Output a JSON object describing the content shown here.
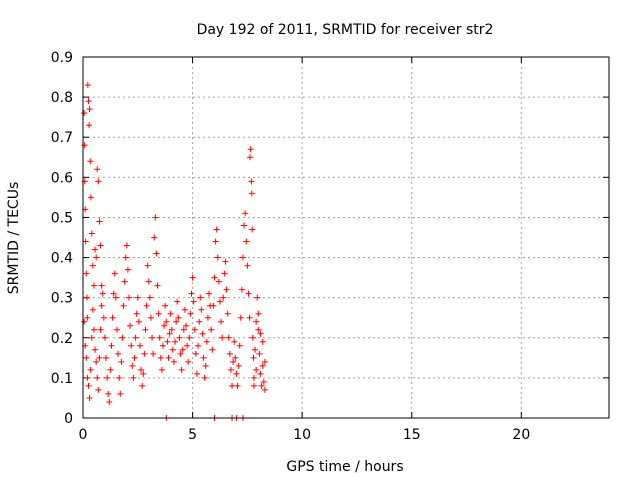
{
  "chart_data": {
    "type": "scatter",
    "title": "Day 192 of 2011, SRMTID for receiver str2",
    "xlabel": "GPS time / hours",
    "ylabel": "SRMTID / TECUs",
    "xlim": [
      0,
      24
    ],
    "ylim": [
      0,
      0.9
    ],
    "xticks": [
      0,
      5,
      10,
      15,
      20
    ],
    "yticks": [
      0,
      0.1,
      0.2,
      0.3,
      0.4,
      0.5,
      0.6,
      0.7,
      0.8,
      0.9
    ],
    "grid": true,
    "marker": "+",
    "color": "#ff0000",
    "series": [
      {
        "values": [
          [
            0.05,
            0.76
          ],
          [
            0.07,
            0.68
          ],
          [
            0.08,
            0.59
          ],
          [
            0.1,
            0.52
          ],
          [
            0.12,
            0.44
          ],
          [
            0.15,
            0.36
          ],
          [
            0.18,
            0.3
          ],
          [
            0.2,
            0.25
          ],
          [
            0.22,
            0.83
          ],
          [
            0.25,
            0.79
          ],
          [
            0.28,
            0.73
          ],
          [
            0.3,
            0.77
          ],
          [
            0.33,
            0.64
          ],
          [
            0.36,
            0.55
          ],
          [
            0.4,
            0.46
          ],
          [
            0.45,
            0.38
          ],
          [
            0.5,
            0.33
          ],
          [
            0.55,
            0.42
          ],
          [
            0.6,
            0.4
          ],
          [
            0.65,
            0.62
          ],
          [
            0.7,
            0.59
          ],
          [
            0.75,
            0.49
          ],
          [
            0.8,
            0.43
          ],
          [
            0.85,
            0.33
          ],
          [
            0.05,
            0.24
          ],
          [
            0.1,
            0.18
          ],
          [
            0.15,
            0.15
          ],
          [
            0.2,
            0.1
          ],
          [
            0.25,
            0.08
          ],
          [
            0.3,
            0.05
          ],
          [
            0.35,
            0.12
          ],
          [
            0.4,
            0.2
          ],
          [
            0.45,
            0.27
          ],
          [
            0.5,
            0.22
          ],
          [
            0.55,
            0.17
          ],
          [
            0.6,
            0.14
          ],
          [
            0.65,
            0.1
          ],
          [
            0.7,
            0.07
          ],
          [
            0.75,
            0.15
          ],
          [
            0.8,
            0.22
          ],
          [
            0.85,
            0.28
          ],
          [
            0.9,
            0.31
          ],
          [
            0.95,
            0.25
          ],
          [
            1.0,
            0.2
          ],
          [
            1.05,
            0.15
          ],
          [
            1.1,
            0.1
          ],
          [
            1.15,
            0.06
          ],
          [
            1.2,
            0.04
          ],
          [
            1.25,
            0.12
          ],
          [
            1.3,
            0.18
          ],
          [
            1.35,
            0.25
          ],
          [
            1.4,
            0.31
          ],
          [
            1.45,
            0.36
          ],
          [
            1.5,
            0.3
          ],
          [
            1.55,
            0.22
          ],
          [
            1.6,
            0.16
          ],
          [
            1.65,
            0.1
          ],
          [
            1.7,
            0.06
          ],
          [
            1.75,
            0.14
          ],
          [
            1.8,
            0.2
          ],
          [
            1.85,
            0.28
          ],
          [
            1.9,
            0.34
          ],
          [
            1.95,
            0.4
          ],
          [
            2.0,
            0.43
          ],
          [
            2.05,
            0.37
          ],
          [
            2.1,
            0.3
          ],
          [
            2.15,
            0.23
          ],
          [
            2.2,
            0.18
          ],
          [
            2.25,
            0.13
          ],
          [
            2.3,
            0.1
          ],
          [
            2.35,
            0.15
          ],
          [
            2.4,
            0.2
          ],
          [
            2.45,
            0.26
          ],
          [
            2.5,
            0.3
          ],
          [
            2.55,
            0.24
          ],
          [
            2.6,
            0.18
          ],
          [
            2.65,
            0.12
          ],
          [
            2.7,
            0.08
          ],
          [
            2.75,
            0.11
          ],
          [
            2.8,
            0.16
          ],
          [
            2.85,
            0.22
          ],
          [
            2.9,
            0.28
          ],
          [
            2.95,
            0.38
          ],
          [
            3.0,
            0.34
          ],
          [
            3.05,
            0.3
          ],
          [
            3.1,
            0.25
          ],
          [
            3.15,
            0.2
          ],
          [
            3.2,
            0.16
          ],
          [
            3.25,
            0.45
          ],
          [
            3.3,
            0.5
          ],
          [
            3.35,
            0.41
          ],
          [
            3.4,
            0.33
          ],
          [
            3.45,
            0.26
          ],
          [
            3.5,
            0.2
          ],
          [
            3.55,
            0.15
          ],
          [
            3.6,
            0.12
          ],
          [
            3.65,
            0.18
          ],
          [
            3.7,
            0.23
          ],
          [
            3.75,
            0.28
          ],
          [
            3.8,
            0.24
          ],
          [
            3.85,
            0.19
          ],
          [
            3.9,
            0.15
          ],
          [
            3.95,
            0.21
          ],
          [
            4.0,
            0.26
          ],
          [
            4.05,
            0.22
          ],
          [
            4.1,
            0.17
          ],
          [
            4.15,
            0.14
          ],
          [
            4.2,
            0.19
          ],
          [
            4.25,
            0.24
          ],
          [
            4.3,
            0.29
          ],
          [
            4.35,
            0.25
          ],
          [
            4.4,
            0.2
          ],
          [
            4.45,
            0.16
          ],
          [
            4.5,
            0.12
          ],
          [
            4.55,
            0.17
          ],
          [
            4.6,
            0.22
          ],
          [
            4.65,
            0.27
          ],
          [
            4.7,
            0.23
          ],
          [
            4.75,
            0.18
          ],
          [
            4.8,
            0.14
          ],
          [
            4.85,
            0.2
          ],
          [
            4.9,
            0.26
          ],
          [
            4.95,
            0.31
          ],
          [
            5.0,
            0.35
          ],
          [
            5.05,
            0.29
          ],
          [
            5.1,
            0.22
          ],
          [
            5.15,
            0.16
          ],
          [
            5.2,
            0.11
          ],
          [
            5.25,
            0.18
          ],
          [
            5.3,
            0.24
          ],
          [
            5.35,
            0.3
          ],
          [
            5.4,
            0.27
          ],
          [
            5.45,
            0.21
          ],
          [
            5.5,
            0.15
          ],
          [
            5.55,
            0.1
          ],
          [
            5.6,
            0.13
          ],
          [
            5.65,
            0.19
          ],
          [
            5.7,
            0.25
          ],
          [
            5.75,
            0.31
          ],
          [
            5.8,
            0.28
          ],
          [
            5.85,
            0.22
          ],
          [
            5.9,
            0.17
          ],
          [
            5.95,
            0.28
          ],
          [
            6.0,
            0.35
          ],
          [
            6.05,
            0.44
          ],
          [
            6.1,
            0.47
          ],
          [
            6.15,
            0.4
          ],
          [
            6.2,
            0.34
          ],
          [
            6.25,
            0.29
          ],
          [
            6.3,
            0.24
          ],
          [
            6.35,
            0.2
          ],
          [
            6.4,
            0.3
          ],
          [
            6.45,
            0.36
          ],
          [
            6.5,
            0.39
          ],
          [
            6.55,
            0.32
          ],
          [
            6.6,
            0.26
          ],
          [
            6.65,
            0.2
          ],
          [
            6.7,
            0.16
          ],
          [
            6.75,
            0.12
          ],
          [
            6.8,
            0.08
          ],
          [
            6.85,
            0.14
          ],
          [
            6.9,
            0.19
          ],
          [
            6.95,
            0.15
          ],
          [
            7.0,
            0.11
          ],
          [
            7.05,
            0.08
          ],
          [
            7.1,
            0.13
          ],
          [
            7.15,
            0.18
          ],
          [
            7.2,
            0.25
          ],
          [
            7.25,
            0.32
          ],
          [
            7.3,
            0.4
          ],
          [
            7.35,
            0.48
          ],
          [
            7.4,
            0.51
          ],
          [
            7.45,
            0.44
          ],
          [
            7.5,
            0.38
          ],
          [
            7.55,
            0.31
          ],
          [
            7.6,
            0.25
          ],
          [
            7.62,
            0.65
          ],
          [
            7.65,
            0.67
          ],
          [
            7.68,
            0.59
          ],
          [
            7.7,
            0.56
          ],
          [
            7.72,
            0.47
          ],
          [
            7.75,
            0.2
          ],
          [
            7.78,
            0.15
          ],
          [
            7.8,
            0.1
          ],
          [
            7.85,
            0.17
          ],
          [
            7.9,
            0.24
          ],
          [
            7.95,
            0.3
          ],
          [
            8.0,
            0.22
          ],
          [
            8.05,
            0.16
          ],
          [
            8.1,
            0.11
          ],
          [
            8.15,
            0.08
          ],
          [
            8.2,
            0.13
          ],
          [
            8.25,
            0.09
          ],
          [
            8.3,
            0.14
          ],
          [
            8.3,
            0.07
          ],
          [
            8.2,
            0.19
          ],
          [
            8.1,
            0.21
          ],
          [
            8.0,
            0.26
          ],
          [
            7.9,
            0.12
          ],
          [
            7.8,
            0.08
          ],
          [
            3.8,
            0.0
          ],
          [
            6.0,
            0.0
          ],
          [
            6.8,
            0.0
          ],
          [
            7.0,
            0.0
          ],
          [
            7.3,
            0.0
          ]
        ]
      }
    ]
  }
}
